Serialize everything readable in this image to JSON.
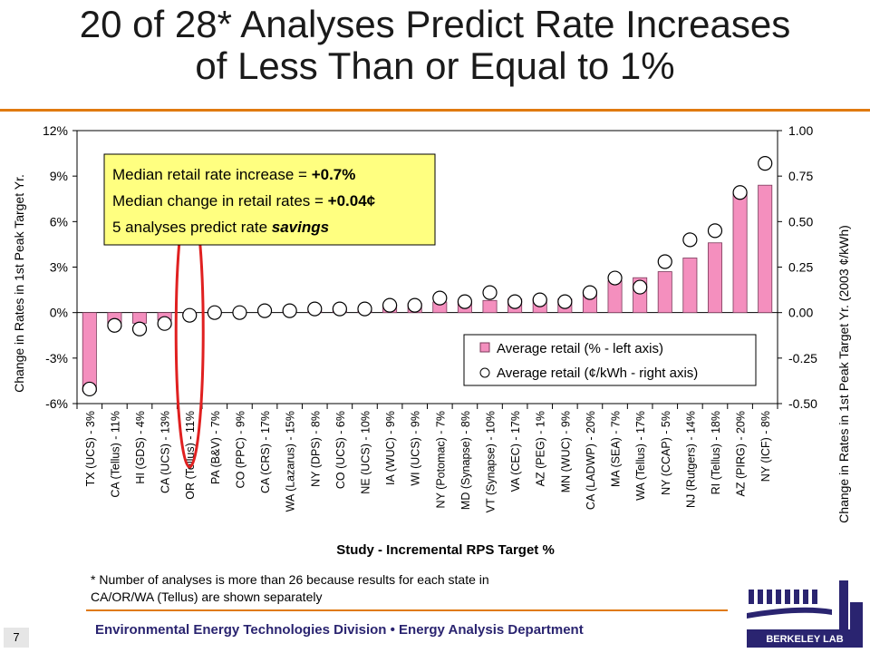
{
  "title": {
    "line1": "20 of 28* Analyses Predict Rate Increases",
    "line2": "of Less Than or Equal to 1%"
  },
  "chart_data": {
    "type": "bar",
    "xlabel": "Study - Incremental RPS Target %",
    "ylabel_left": "Change in Rates in 1st Peak Target Yr.",
    "ylabel_right": "Change in Rates in 1st Peak Target Yr. (2003 ¢/kWh)",
    "ylim_left": [
      -0.06,
      0.12
    ],
    "yticks_left": [
      "-6%",
      "-3%",
      "0%",
      "3%",
      "6%",
      "9%",
      "12%"
    ],
    "ylim_right": [
      -0.5,
      1.0
    ],
    "yticks_right": [
      "-0.50",
      "-0.25",
      "0.00",
      "0.25",
      "0.50",
      "0.75",
      "1.00"
    ],
    "categories": [
      "TX (UCS) - 3%",
      "CA (Tellus) - 11%",
      "HI (GDS) - 4%",
      "CA (UCS) - 13%",
      "OR (Tellus) - 11%",
      "PA (B&V) - 7%",
      "CO (PPC) - 9%",
      "CA (CRS) - 17%",
      "WA (Lazarus) - 15%",
      "NY (DPS) - 8%",
      "CO (UCS) - 6%",
      "NE (UCS) - 10%",
      "IA (WUC) - 9%",
      "WI (UCS) - 9%",
      "NY (Potomac) - 7%",
      "MD (Synapse) - 8%",
      "VT (Synapse) - 10%",
      "VA (CEC) - 17%",
      "AZ (PEG) - 1%",
      "MN (WUC) - 9%",
      "CA (LADWP) - 20%",
      "MA (SEA) - 7%",
      "WA (Tellus) - 17%",
      "NY (CCAP) - 5%",
      "NJ (Rutgers) - 14%",
      "RI (Tellus) - 18%",
      "AZ (PIRG) - 20%",
      "NY (ICF) - 8%"
    ],
    "series": [
      {
        "name": "Average retail (% - left axis)",
        "axis": "left",
        "values": [
          -0.052,
          -0.007,
          -0.007,
          -0.005,
          -0.001,
          0.0,
          0.0,
          0.0005,
          0.0005,
          0.001,
          0.001,
          0.001,
          0.005,
          0.006,
          0.007,
          0.007,
          0.008,
          0.009,
          0.009,
          0.009,
          0.013,
          0.021,
          0.023,
          0.027,
          0.036,
          0.046,
          0.079,
          0.084
        ]
      },
      {
        "name": "Average retail (¢/kWh - right axis)",
        "axis": "right",
        "values": [
          -0.42,
          -0.07,
          -0.09,
          -0.06,
          -0.015,
          0.0,
          0.0,
          0.01,
          0.01,
          0.02,
          0.02,
          0.02,
          0.04,
          0.04,
          0.08,
          0.06,
          0.11,
          0.06,
          0.07,
          0.06,
          0.11,
          0.19,
          0.14,
          0.28,
          0.4,
          0.45,
          0.66,
          0.82
        ]
      }
    ],
    "annotation": {
      "line1_text": "Median retail rate increase = ",
      "line1_value": "+0.7%",
      "line2_text": "Median change in retail rates = ",
      "line2_value": "+0.04¢",
      "line3_text": "5 analyses predict rate ",
      "line3_value": "savings"
    },
    "highlighted_category": "OR (Tellus) - 11%",
    "legend_position": "bottom-right",
    "colors": {
      "bar": "#f48fbe",
      "bar_border": "#7a3a5a",
      "marker_fill": "#ffffff",
      "highlight": "#e02020",
      "annotation_bg": "#ffff80"
    }
  },
  "footnote": {
    "line1": "* Number of analyses is more than 26 because results for each state in",
    "line2": "CA/OR/WA (Tellus) are shown separately"
  },
  "footer": {
    "text": "Environmental Energy Technologies Division • Energy Analysis Department"
  },
  "slide_number": "7",
  "logo": {
    "name": "berkeley-lab-logo",
    "text": "BERKELEY LAB"
  }
}
